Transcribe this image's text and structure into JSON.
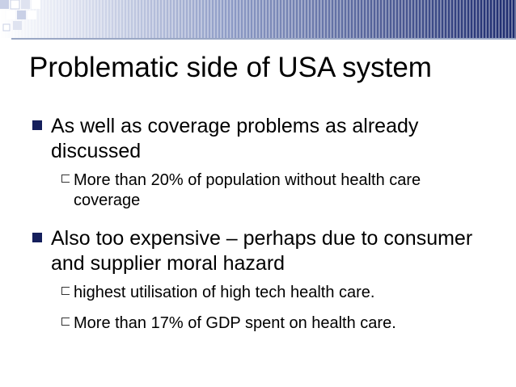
{
  "slide": {
    "title": "Problematic side of USA system",
    "bullets": [
      {
        "text": "As well as coverage problems as already discussed",
        "sub": [
          "More than 20% of population without health care coverage"
        ]
      },
      {
        "text": "Also  too expensive – perhaps due to consumer and supplier moral hazard",
        "sub": [
          "highest utilisation of high tech health care.",
          "More than 17% of GDP spent on health care."
        ]
      }
    ]
  },
  "colors": {
    "header_dark": "#1c2a6e",
    "header_light": "#c9d0e6",
    "bullet": "#151f5c"
  }
}
